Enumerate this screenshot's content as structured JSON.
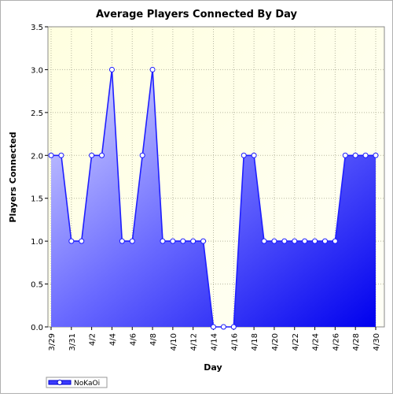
{
  "chart_data": {
    "type": "area",
    "title": "Average Players Connected By Day",
    "xlabel": "Day",
    "ylabel": "Players Connected",
    "ylim": [
      0,
      3.5
    ],
    "y_ticks": [
      "0.0",
      "0.5",
      "1.0",
      "1.5",
      "2.0",
      "2.5",
      "3.0",
      "3.5"
    ],
    "x_tick_labels": [
      "3/29",
      "3/31",
      "4/2",
      "4/4",
      "4/6",
      "4/8",
      "4/10",
      "4/12",
      "4/14",
      "4/16",
      "4/18",
      "4/20",
      "4/22",
      "4/24",
      "4/26",
      "4/28",
      "4/30"
    ],
    "grid": true,
    "legend_position": "bottom-left",
    "categories": [
      "3/29",
      "3/30",
      "3/31",
      "4/1",
      "4/2",
      "4/3",
      "4/4",
      "4/5",
      "4/6",
      "4/7",
      "4/8",
      "4/9",
      "4/10",
      "4/11",
      "4/12",
      "4/13",
      "4/14",
      "4/15",
      "4/16",
      "4/17",
      "4/18",
      "4/19",
      "4/20",
      "4/21",
      "4/22",
      "4/23",
      "4/24",
      "4/25",
      "4/26",
      "4/27",
      "4/28",
      "4/29",
      "4/30"
    ],
    "series": [
      {
        "name": "NoKaOi",
        "color": "#1f1fff",
        "values": [
          2,
          2,
          1,
          1,
          2,
          2,
          3,
          1,
          1,
          2,
          3,
          1,
          1,
          1,
          1,
          1,
          0,
          0,
          0,
          2,
          2,
          1,
          1,
          1,
          1,
          1,
          1,
          1,
          1,
          2,
          2,
          2,
          2
        ]
      }
    ]
  }
}
